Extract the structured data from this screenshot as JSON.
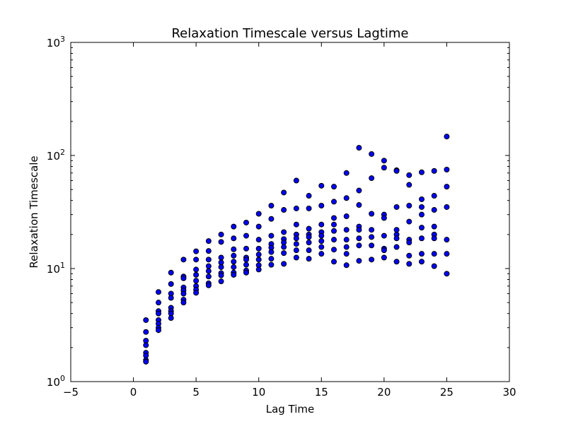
{
  "chart_data": {
    "type": "scatter",
    "title": "Relaxation Timescale versus Lagtime",
    "xlabel": "Lag Time",
    "ylabel": "Relaxation Timescale",
    "xlim": [
      -5,
      30
    ],
    "ylim": [
      1,
      1000
    ],
    "yscale": "log",
    "grid": false,
    "legend": "none",
    "marker_color": "#0000ff",
    "x_ticks": [
      -5,
      0,
      5,
      10,
      15,
      20,
      25,
      30
    ],
    "x_tick_labels": [
      "−5",
      "0",
      "5",
      "10",
      "15",
      "20",
      "25",
      "30"
    ],
    "y_ticks": [
      {
        "value": 1,
        "base": "10",
        "exp": "0"
      },
      {
        "value": 10,
        "base": "10",
        "exp": "1"
      },
      {
        "value": 100,
        "base": "10",
        "exp": "2"
      },
      {
        "value": 1000,
        "base": "10",
        "exp": "3"
      }
    ],
    "points": [
      {
        "x": 1,
        "y": 3.5
      },
      {
        "x": 1,
        "y": 2.75
      },
      {
        "x": 1,
        "y": 2.3
      },
      {
        "x": 1,
        "y": 2.1
      },
      {
        "x": 1,
        "y": 1.8
      },
      {
        "x": 1,
        "y": 1.7
      },
      {
        "x": 1,
        "y": 1.55
      },
      {
        "x": 1,
        "y": 1.5
      },
      {
        "x": 2,
        "y": 6.2
      },
      {
        "x": 2,
        "y": 5.0
      },
      {
        "x": 2,
        "y": 4.2
      },
      {
        "x": 2,
        "y": 4.0
      },
      {
        "x": 2,
        "y": 3.5
      },
      {
        "x": 2,
        "y": 3.25
      },
      {
        "x": 2,
        "y": 3.0
      },
      {
        "x": 2,
        "y": 2.85
      },
      {
        "x": 3,
        "y": 9.2
      },
      {
        "x": 3,
        "y": 7.3
      },
      {
        "x": 3,
        "y": 6.0
      },
      {
        "x": 3,
        "y": 5.5
      },
      {
        "x": 3,
        "y": 4.5
      },
      {
        "x": 3,
        "y": 4.2
      },
      {
        "x": 3,
        "y": 4.0
      },
      {
        "x": 3,
        "y": 3.65
      },
      {
        "x": 4,
        "y": 12.0
      },
      {
        "x": 4,
        "y": 8.5
      },
      {
        "x": 4,
        "y": 8.2
      },
      {
        "x": 4,
        "y": 6.8
      },
      {
        "x": 4,
        "y": 6.4
      },
      {
        "x": 4,
        "y": 6.0
      },
      {
        "x": 4,
        "y": 5.3
      },
      {
        "x": 4,
        "y": 5.0
      },
      {
        "x": 5,
        "y": 14.2
      },
      {
        "x": 5,
        "y": 12.0
      },
      {
        "x": 5,
        "y": 9.8
      },
      {
        "x": 5,
        "y": 8.8
      },
      {
        "x": 5,
        "y": 7.8
      },
      {
        "x": 5,
        "y": 7.0
      },
      {
        "x": 5,
        "y": 6.5
      },
      {
        "x": 5,
        "y": 6.1
      },
      {
        "x": 6,
        "y": 17.5
      },
      {
        "x": 6,
        "y": 14.3
      },
      {
        "x": 6,
        "y": 12.0
      },
      {
        "x": 6,
        "y": 10.5
      },
      {
        "x": 6,
        "y": 9.5
      },
      {
        "x": 6,
        "y": 8.5
      },
      {
        "x": 6,
        "y": 7.4
      },
      {
        "x": 6,
        "y": 7.1
      },
      {
        "x": 7,
        "y": 20.0
      },
      {
        "x": 7,
        "y": 17.2
      },
      {
        "x": 7,
        "y": 12.5
      },
      {
        "x": 7,
        "y": 11.3
      },
      {
        "x": 7,
        "y": 10.3
      },
      {
        "x": 7,
        "y": 9.1
      },
      {
        "x": 7,
        "y": 8.7
      },
      {
        "x": 7,
        "y": 7.7
      },
      {
        "x": 8,
        "y": 23.5
      },
      {
        "x": 8,
        "y": 18.5
      },
      {
        "x": 8,
        "y": 14.8
      },
      {
        "x": 8,
        "y": 13.0
      },
      {
        "x": 8,
        "y": 11.5
      },
      {
        "x": 8,
        "y": 10.3
      },
      {
        "x": 8,
        "y": 9.2
      },
      {
        "x": 8,
        "y": 8.8
      },
      {
        "x": 9,
        "y": 25.5
      },
      {
        "x": 9,
        "y": 19.5
      },
      {
        "x": 9,
        "y": 15.0
      },
      {
        "x": 9,
        "y": 12.5
      },
      {
        "x": 9,
        "y": 12.0
      },
      {
        "x": 9,
        "y": 10.8
      },
      {
        "x": 9,
        "y": 9.6
      },
      {
        "x": 9,
        "y": 9.2
      },
      {
        "x": 10,
        "y": 30.5
      },
      {
        "x": 10,
        "y": 23.5
      },
      {
        "x": 10,
        "y": 18.0
      },
      {
        "x": 10,
        "y": 15.0
      },
      {
        "x": 10,
        "y": 13.3
      },
      {
        "x": 10,
        "y": 12.0
      },
      {
        "x": 10,
        "y": 10.7
      },
      {
        "x": 10,
        "y": 9.8
      },
      {
        "x": 11,
        "y": 36.0
      },
      {
        "x": 11,
        "y": 27.5
      },
      {
        "x": 11,
        "y": 19.5
      },
      {
        "x": 11,
        "y": 16.5
      },
      {
        "x": 11,
        "y": 15.3
      },
      {
        "x": 11,
        "y": 14.0
      },
      {
        "x": 11,
        "y": 12.2
      },
      {
        "x": 11,
        "y": 10.8
      },
      {
        "x": 12,
        "y": 47.0
      },
      {
        "x": 12,
        "y": 33.0
      },
      {
        "x": 12,
        "y": 21.0
      },
      {
        "x": 12,
        "y": 18.2
      },
      {
        "x": 12,
        "y": 17.0
      },
      {
        "x": 12,
        "y": 15.5
      },
      {
        "x": 12,
        "y": 13.7
      },
      {
        "x": 12,
        "y": 11.0
      },
      {
        "x": 13,
        "y": 60.0
      },
      {
        "x": 13,
        "y": 34.0
      },
      {
        "x": 13,
        "y": 24.5
      },
      {
        "x": 13,
        "y": 20.0
      },
      {
        "x": 13,
        "y": 18.5
      },
      {
        "x": 13,
        "y": 16.5
      },
      {
        "x": 13,
        "y": 14.5
      },
      {
        "x": 13,
        "y": 12.5
      },
      {
        "x": 14,
        "y": 44.0
      },
      {
        "x": 14,
        "y": 34.0
      },
      {
        "x": 14,
        "y": 22.5
      },
      {
        "x": 14,
        "y": 20.0
      },
      {
        "x": 14,
        "y": 19.0
      },
      {
        "x": 14,
        "y": 17.0
      },
      {
        "x": 14,
        "y": 14.5
      },
      {
        "x": 14,
        "y": 12.2
      },
      {
        "x": 15,
        "y": 54.0
      },
      {
        "x": 15,
        "y": 36.0
      },
      {
        "x": 15,
        "y": 24.5
      },
      {
        "x": 15,
        "y": 21.0
      },
      {
        "x": 15,
        "y": 19.5
      },
      {
        "x": 15,
        "y": 17.5
      },
      {
        "x": 15,
        "y": 15.5
      },
      {
        "x": 15,
        "y": 13.5
      },
      {
        "x": 16,
        "y": 53.0
      },
      {
        "x": 16,
        "y": 39.0
      },
      {
        "x": 16,
        "y": 28.0
      },
      {
        "x": 16,
        "y": 24.5
      },
      {
        "x": 16,
        "y": 21.5
      },
      {
        "x": 16,
        "y": 18.0
      },
      {
        "x": 16,
        "y": 14.7
      },
      {
        "x": 16,
        "y": 11.5
      },
      {
        "x": 17,
        "y": 70.0
      },
      {
        "x": 17,
        "y": 42.0
      },
      {
        "x": 17,
        "y": 29.0
      },
      {
        "x": 17,
        "y": 22.0
      },
      {
        "x": 17,
        "y": 18.0
      },
      {
        "x": 17,
        "y": 15.5
      },
      {
        "x": 17,
        "y": 13.5
      },
      {
        "x": 17,
        "y": 10.7
      },
      {
        "x": 18,
        "y": 117.0
      },
      {
        "x": 18,
        "y": 49.0
      },
      {
        "x": 18,
        "y": 36.5
      },
      {
        "x": 18,
        "y": 23.5
      },
      {
        "x": 18,
        "y": 22.0
      },
      {
        "x": 18,
        "y": 18.5
      },
      {
        "x": 18,
        "y": 16.0
      },
      {
        "x": 18,
        "y": 11.7
      },
      {
        "x": 19,
        "y": 103.0
      },
      {
        "x": 19,
        "y": 63.0
      },
      {
        "x": 19,
        "y": 30.5
      },
      {
        "x": 19,
        "y": 22.0
      },
      {
        "x": 19,
        "y": 19.0
      },
      {
        "x": 19,
        "y": 16.0
      },
      {
        "x": 19,
        "y": 12.0
      },
      {
        "x": 20,
        "y": 90.0
      },
      {
        "x": 20,
        "y": 78.0
      },
      {
        "x": 20,
        "y": 30.0
      },
      {
        "x": 20,
        "y": 28.0
      },
      {
        "x": 20,
        "y": 19.5
      },
      {
        "x": 20,
        "y": 15.0
      },
      {
        "x": 20,
        "y": 14.5
      },
      {
        "x": 20,
        "y": 12.5
      },
      {
        "x": 21,
        "y": 74.0
      },
      {
        "x": 21,
        "y": 73.0
      },
      {
        "x": 21,
        "y": 35.0
      },
      {
        "x": 21,
        "y": 22.0
      },
      {
        "x": 21,
        "y": 20.0
      },
      {
        "x": 21,
        "y": 18.5
      },
      {
        "x": 21,
        "y": 15.5
      },
      {
        "x": 21,
        "y": 11.5
      },
      {
        "x": 22,
        "y": 67.0
      },
      {
        "x": 22,
        "y": 55.0
      },
      {
        "x": 22,
        "y": 36.0
      },
      {
        "x": 22,
        "y": 26.0
      },
      {
        "x": 22,
        "y": 18.0
      },
      {
        "x": 22,
        "y": 17.0
      },
      {
        "x": 22,
        "y": 13.0
      },
      {
        "x": 22,
        "y": 11.0
      },
      {
        "x": 23,
        "y": 71.0
      },
      {
        "x": 23,
        "y": 41.0
      },
      {
        "x": 23,
        "y": 35.0
      },
      {
        "x": 23,
        "y": 30.0
      },
      {
        "x": 23,
        "y": 23.0
      },
      {
        "x": 23,
        "y": 18.5
      },
      {
        "x": 23,
        "y": 13.5
      },
      {
        "x": 23,
        "y": 11.5
      },
      {
        "x": 24,
        "y": 73.0
      },
      {
        "x": 24,
        "y": 44.0
      },
      {
        "x": 24,
        "y": 33.0
      },
      {
        "x": 24,
        "y": 23.5
      },
      {
        "x": 24,
        "y": 20.0
      },
      {
        "x": 24,
        "y": 18.5
      },
      {
        "x": 24,
        "y": 13.5
      },
      {
        "x": 24,
        "y": 10.5
      },
      {
        "x": 25,
        "y": 147.0
      },
      {
        "x": 25,
        "y": 75.0
      },
      {
        "x": 25,
        "y": 53.0
      },
      {
        "x": 25,
        "y": 35.0
      },
      {
        "x": 25,
        "y": 18.0
      },
      {
        "x": 25,
        "y": 13.5
      },
      {
        "x": 25,
        "y": 9.0
      }
    ]
  }
}
